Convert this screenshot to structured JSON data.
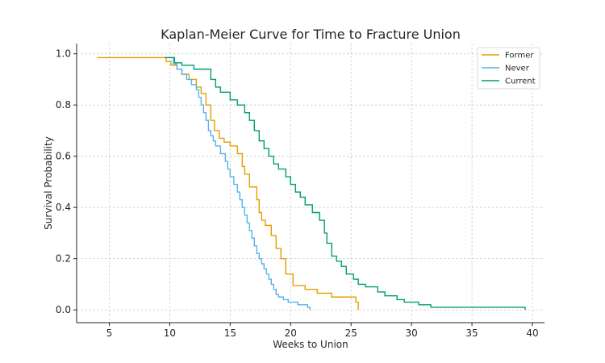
{
  "chart_data": {
    "type": "line",
    "title": "Kaplan-Meier Curve for Time to Fracture Union",
    "xlabel": "Weeks to Union",
    "ylabel": "Survival Probability",
    "xlim": [
      2.3,
      41
    ],
    "ylim": [
      -0.05,
      1.04
    ],
    "xticks": [
      5,
      10,
      15,
      20,
      25,
      30,
      35,
      40
    ],
    "yticks": [
      0.0,
      0.2,
      0.4,
      0.6,
      0.8,
      1.0
    ],
    "grid": true,
    "legend_position": "top-right",
    "step": true,
    "series": [
      {
        "name": "Former",
        "color": "#E69F00",
        "x": [
          4.0,
          9.7,
          10.1,
          10.6,
          11.0,
          11.6,
          12.2,
          12.6,
          13.0,
          13.4,
          13.7,
          14.1,
          14.5,
          15.0,
          15.6,
          16.0,
          16.2,
          16.6,
          17.2,
          17.4,
          17.6,
          17.9,
          18.4,
          18.8,
          19.2,
          19.6,
          20.2,
          21.2,
          22.2,
          23.4,
          25.4,
          25.6
        ],
        "y": [
          0.985,
          0.97,
          0.955,
          0.94,
          0.92,
          0.9,
          0.87,
          0.845,
          0.8,
          0.74,
          0.7,
          0.67,
          0.655,
          0.64,
          0.61,
          0.56,
          0.53,
          0.48,
          0.43,
          0.38,
          0.35,
          0.33,
          0.29,
          0.24,
          0.2,
          0.14,
          0.095,
          0.08,
          0.065,
          0.05,
          0.03,
          0.0
        ]
      },
      {
        "name": "Never",
        "color": "#56B4E9",
        "x": [
          10.0,
          10.3,
          10.6,
          11.0,
          11.4,
          11.8,
          12.2,
          12.4,
          12.6,
          12.8,
          13.0,
          13.2,
          13.4,
          13.6,
          13.8,
          14.2,
          14.6,
          14.8,
          15.0,
          15.3,
          15.6,
          15.8,
          16.0,
          16.2,
          16.4,
          16.6,
          16.8,
          17.0,
          17.2,
          17.4,
          17.6,
          17.8,
          18.0,
          18.2,
          18.4,
          18.6,
          18.8,
          19.0,
          19.4,
          19.8,
          20.6,
          21.4,
          21.6
        ],
        "y": [
          0.985,
          0.96,
          0.94,
          0.92,
          0.9,
          0.88,
          0.86,
          0.83,
          0.8,
          0.77,
          0.74,
          0.7,
          0.68,
          0.66,
          0.64,
          0.61,
          0.58,
          0.55,
          0.52,
          0.49,
          0.46,
          0.43,
          0.4,
          0.37,
          0.34,
          0.31,
          0.28,
          0.25,
          0.22,
          0.2,
          0.18,
          0.16,
          0.14,
          0.12,
          0.1,
          0.08,
          0.06,
          0.05,
          0.04,
          0.03,
          0.02,
          0.01,
          0.0
        ]
      },
      {
        "name": "Current",
        "color": "#009E73",
        "x": [
          9.6,
          10.4,
          11.0,
          12.0,
          13.4,
          13.8,
          14.2,
          15.0,
          15.6,
          16.2,
          16.6,
          17.0,
          17.4,
          17.8,
          18.2,
          18.6,
          19.0,
          19.6,
          20.0,
          20.4,
          20.8,
          21.2,
          21.8,
          22.4,
          22.8,
          23.0,
          23.4,
          23.8,
          24.2,
          24.6,
          25.2,
          25.6,
          26.2,
          27.2,
          27.8,
          28.8,
          29.4,
          30.6,
          31.6,
          39.4
        ],
        "y": [
          0.985,
          0.965,
          0.955,
          0.94,
          0.9,
          0.87,
          0.85,
          0.82,
          0.8,
          0.77,
          0.74,
          0.7,
          0.66,
          0.63,
          0.6,
          0.57,
          0.55,
          0.52,
          0.49,
          0.46,
          0.44,
          0.41,
          0.38,
          0.35,
          0.3,
          0.26,
          0.21,
          0.19,
          0.17,
          0.14,
          0.12,
          0.1,
          0.09,
          0.07,
          0.055,
          0.04,
          0.03,
          0.02,
          0.01,
          0.0
        ]
      }
    ]
  }
}
